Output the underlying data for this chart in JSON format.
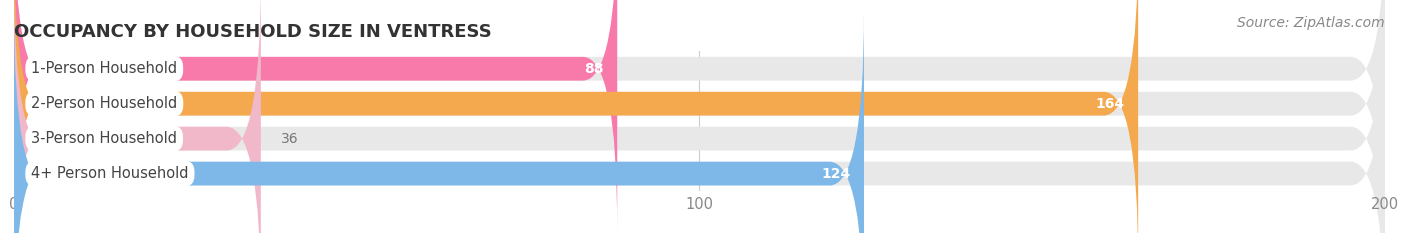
{
  "title": "OCCUPANCY BY HOUSEHOLD SIZE IN VENTRESS",
  "source": "Source: ZipAtlas.com",
  "categories": [
    "1-Person Household",
    "2-Person Household",
    "3-Person Household",
    "4+ Person Household"
  ],
  "values": [
    88,
    164,
    36,
    124
  ],
  "bar_colors": [
    "#f87aab",
    "#f5a94e",
    "#f0b8c8",
    "#7db8e8"
  ],
  "bar_bg_color": "#e8e8e8",
  "xlim": [
    0,
    200
  ],
  "xticks": [
    0,
    100,
    200
  ],
  "title_fontsize": 13,
  "label_fontsize": 10.5,
  "value_fontsize": 10,
  "source_fontsize": 10,
  "background_color": "#ffffff",
  "bar_height": 0.68,
  "rounding_size": 5
}
